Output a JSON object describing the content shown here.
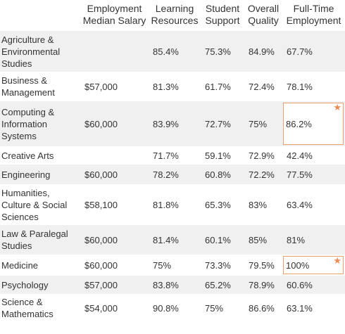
{
  "headers": {
    "subject": "",
    "salary": "Employment Median Salary",
    "learning": "Learning Resources",
    "support": "Student Support",
    "quality": "Overall Quality",
    "fulltime": "Full-Time Employment"
  },
  "rows": [
    {
      "subject": "Agriculture & Environmental Studies",
      "salary": "",
      "learning": "85.4%",
      "support": "75.3%",
      "quality": "84.9%",
      "fulltime": "67.7%"
    },
    {
      "subject": "Business & Management",
      "salary": "$57,000",
      "learning": "81.3%",
      "support": "61.7%",
      "quality": "72.4%",
      "fulltime": "78.1%"
    },
    {
      "subject": "Computing & Information Systems",
      "salary": "$60,000",
      "learning": "83.9%",
      "support": "72.7%",
      "quality": "75%",
      "fulltime": "86.2%"
    },
    {
      "subject": "Creative Arts",
      "salary": "",
      "learning": "71.7%",
      "support": "59.1%",
      "quality": "72.9%",
      "fulltime": "42.4%"
    },
    {
      "subject": "Engineering",
      "salary": "$60,000",
      "learning": "78.2%",
      "support": "60.8%",
      "quality": "72.2%",
      "fulltime": "77.5%"
    },
    {
      "subject": "Humanities, Culture & Social Sciences",
      "salary": "$58,100",
      "learning": "81.8%",
      "support": "65.3%",
      "quality": "83%",
      "fulltime": "63.4%"
    },
    {
      "subject": "Law & Paralegal Studies",
      "salary": "$60,000",
      "learning": "81.4%",
      "support": "60.1%",
      "quality": "85%",
      "fulltime": "81%"
    },
    {
      "subject": "Medicine",
      "salary": "$60,000",
      "learning": "75%",
      "support": "73.3%",
      "quality": "79.5%",
      "fulltime": "100%"
    },
    {
      "subject": "Psychology",
      "salary": "$57,000",
      "learning": "83.8%",
      "support": "65.2%",
      "quality": "78.9%",
      "fulltime": "60.6%"
    },
    {
      "subject": "Science & Mathematics",
      "salary": "$54,000",
      "learning": "90.8%",
      "support": "75%",
      "quality": "86.6%",
      "fulltime": "63.1%"
    }
  ],
  "highlight_icon": "star-icon",
  "accent_color": "#f08a55"
}
